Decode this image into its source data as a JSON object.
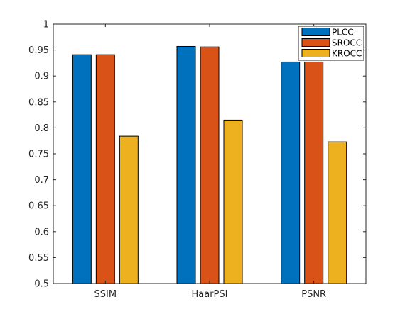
{
  "chart_data": {
    "type": "bar",
    "title": "",
    "xlabel": "",
    "ylabel": "",
    "categories": [
      "SSIM",
      "HaarPSI",
      "PSNR"
    ],
    "series": [
      {
        "name": "PLCC",
        "color": "#0072BD",
        "values": [
          0.941,
          0.957,
          0.927
        ]
      },
      {
        "name": "SROCC",
        "color": "#D95319",
        "values": [
          0.941,
          0.956,
          0.927
        ]
      },
      {
        "name": "KROCC",
        "color": "#EDB120",
        "values": [
          0.784,
          0.815,
          0.773
        ]
      }
    ],
    "ylim": [
      0.5,
      1
    ],
    "yticks": [
      "0.5",
      "0.55",
      "0.6",
      "0.65",
      "0.7",
      "0.75",
      "0.8",
      "0.85",
      "0.9",
      "0.95",
      "1"
    ],
    "grid": false,
    "legend_position": "top-right"
  }
}
